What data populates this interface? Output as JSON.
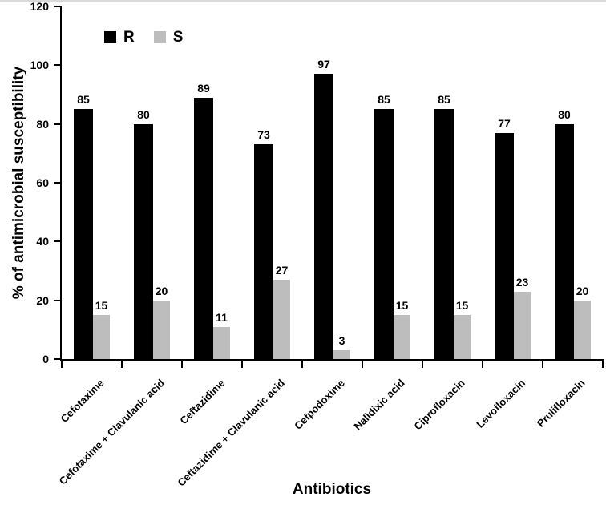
{
  "chart_data": {
    "type": "bar",
    "title": "",
    "xlabel": "Antibiotics",
    "ylabel": "% of antimicrobial susceptibility",
    "ylim": [
      0,
      120
    ],
    "yticks": [
      0,
      20,
      40,
      60,
      80,
      100,
      120
    ],
    "grid": false,
    "legend_position": "top-left-inside",
    "data_labels": true,
    "categories": [
      "Cefotaxime",
      "Cefotaxime + Clavulanic acid",
      "Ceftazidime",
      "Ceftazidime + Clavulanic acid",
      "Cefpodoxime",
      "Nalidixic acid",
      "Ciprofloxacin",
      "Levofloxacin",
      "Prulifloxacin"
    ],
    "series": [
      {
        "name": "R",
        "color": "#000000",
        "values": [
          85,
          80,
          89,
          73,
          97,
          85,
          85,
          77,
          80
        ]
      },
      {
        "name": "S",
        "color": "#bdbdbd",
        "values": [
          15,
          20,
          11,
          27,
          3,
          15,
          15,
          23,
          20
        ]
      }
    ]
  }
}
